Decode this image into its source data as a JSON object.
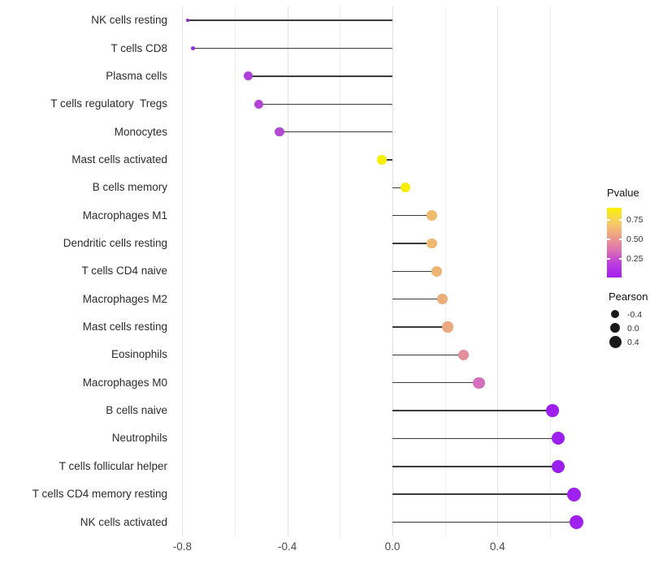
{
  "chart_data": {
    "type": "lollipop",
    "title": "",
    "xlabel": "",
    "ylabel": "",
    "baseline_x": 0.0,
    "x_axis": {
      "major_ticks": [
        -0.8,
        -0.4,
        0.0,
        0.4
      ],
      "tick_labels": [
        "-0.8",
        "-0.4",
        "0.0",
        "0.4"
      ],
      "minor_ticks": [
        -0.6,
        -0.2,
        0.2,
        0.6
      ],
      "xlim": [
        -0.835,
        0.767
      ]
    },
    "grid": {
      "major_color": "#e2e2e2",
      "minor_color": "#efefef"
    },
    "stem_color": "#3a3a3a",
    "points": [
      {
        "category": "NK cells resting",
        "pearson": -0.78,
        "color": "#8a28dc",
        "diameter": 4.5
      },
      {
        "category": "T cells CD8",
        "pearson": -0.76,
        "color": "#9030dc",
        "diameter": 5.5
      },
      {
        "category": "Plasma cells",
        "pearson": -0.55,
        "color": "#ac40d8",
        "diameter": 11
      },
      {
        "category": "T cells regulatory  Tregs",
        "pearson": -0.51,
        "color": "#b045d6",
        "diameter": 11
      },
      {
        "category": "Monocytes",
        "pearson": -0.43,
        "color": "#b34bd3",
        "diameter": 11.5
      },
      {
        "category": "Mast cells activated",
        "pearson": -0.04,
        "color": "#f6ef00",
        "diameter": 11.5
      },
      {
        "category": "B cells memory",
        "pearson": 0.05,
        "color": "#f6ed00",
        "diameter": 12
      },
      {
        "category": "Macrophages M1",
        "pearson": 0.15,
        "color": "#eeba6e",
        "diameter": 12.5
      },
      {
        "category": "Dendritic cells resting",
        "pearson": 0.15,
        "color": "#eeb870",
        "diameter": 12.5
      },
      {
        "category": "T cells CD4 naive",
        "pearson": 0.17,
        "color": "#edb473",
        "diameter": 13
      },
      {
        "category": "Macrophages M2",
        "pearson": 0.19,
        "color": "#ecae78",
        "diameter": 13
      },
      {
        "category": "Mast cells resting",
        "pearson": 0.21,
        "color": "#eba77e",
        "diameter": 13.5
      },
      {
        "category": "Eosinophils",
        "pearson": 0.27,
        "color": "#e18f98",
        "diameter": 13.5
      },
      {
        "category": "Macrophages M0",
        "pearson": 0.33,
        "color": "#d36fbe",
        "diameter": 14.5
      },
      {
        "category": "B cells naive",
        "pearson": 0.61,
        "color": "#9d20ee",
        "diameter": 15.5
      },
      {
        "category": "Neutrophils",
        "pearson": 0.63,
        "color": "#9c1fef",
        "diameter": 16
      },
      {
        "category": "T cells follicular helper",
        "pearson": 0.63,
        "color": "#9c1fef",
        "diameter": 16
      },
      {
        "category": "T cells CD4 memory resting",
        "pearson": 0.69,
        "color": "#a020f0",
        "diameter": 17
      },
      {
        "category": "NK cells activated",
        "pearson": 0.7,
        "color": "#a020f0",
        "diameter": 17
      }
    ],
    "legends": {
      "color": {
        "title": "Pvalue",
        "tick_labels": [
          "0.75",
          "0.50",
          "0.25"
        ],
        "tick_values": [
          0.75,
          0.5,
          0.25
        ],
        "value_range": [
          0.0,
          0.9
        ],
        "gradient": [
          "#fbf200",
          "#f6ce63",
          "#efa285",
          "#de74b2",
          "#bc3edc",
          "#a320f0"
        ]
      },
      "size": {
        "title": "Pearson",
        "dot_color": "#1a1a1a",
        "entries": [
          {
            "label": "-0.4",
            "diameter": 10
          },
          {
            "label": "0.0",
            "diameter": 12.5
          },
          {
            "label": "0.4",
            "diameter": 15
          }
        ]
      }
    }
  }
}
